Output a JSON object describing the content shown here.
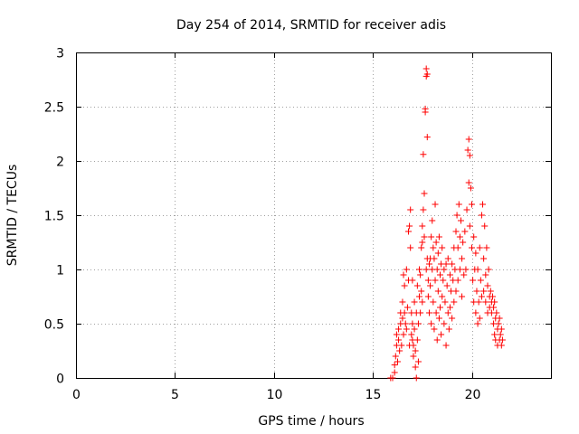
{
  "chart_data": {
    "type": "scatter",
    "title": "Day 254 of 2014, SRMTID for receiver adis",
    "xlabel": "GPS time / hours",
    "ylabel": "SRMTID / TECUs",
    "xlim": [
      0,
      24
    ],
    "ylim": [
      0,
      3
    ],
    "xticks": [
      0,
      5,
      10,
      15,
      20
    ],
    "xtick_labels": [
      "0",
      "5",
      "10",
      "15",
      "20"
    ],
    "yticks": [
      0,
      0.5,
      1,
      1.5,
      2,
      2.5,
      3
    ],
    "ytick_labels": [
      "0",
      "0.5",
      "1",
      "1.5",
      "2",
      "2.5",
      "3"
    ],
    "grid": true,
    "marker": "plus",
    "series": [
      {
        "name": "SRMTID",
        "color": "#ff0000",
        "points": [
          [
            15.9,
            0.0
          ],
          [
            16.0,
            0.0
          ],
          [
            16.1,
            0.05
          ],
          [
            16.1,
            0.12
          ],
          [
            16.15,
            0.2
          ],
          [
            16.2,
            0.3
          ],
          [
            16.2,
            0.4
          ],
          [
            16.25,
            0.15
          ],
          [
            16.3,
            0.35
          ],
          [
            16.3,
            0.45
          ],
          [
            16.35,
            0.25
          ],
          [
            16.4,
            0.5
          ],
          [
            16.4,
            0.6
          ],
          [
            16.45,
            0.3
          ],
          [
            16.5,
            0.55
          ],
          [
            16.5,
            0.7
          ],
          [
            16.55,
            0.95
          ],
          [
            16.55,
            0.4
          ],
          [
            16.6,
            0.6
          ],
          [
            16.6,
            0.85
          ],
          [
            16.65,
            0.5
          ],
          [
            16.7,
            0.45
          ],
          [
            16.7,
            1.0
          ],
          [
            16.75,
            0.65
          ],
          [
            16.8,
            1.35
          ],
          [
            16.8,
            0.9
          ],
          [
            16.85,
            1.4
          ],
          [
            16.85,
            0.3
          ],
          [
            16.9,
            1.55
          ],
          [
            16.9,
            1.2
          ],
          [
            16.95,
            0.4
          ],
          [
            16.95,
            0.6
          ],
          [
            17.0,
            0.35
          ],
          [
            17.0,
            0.5
          ],
          [
            17.0,
            0.9
          ],
          [
            17.05,
            0.3
          ],
          [
            17.05,
            0.2
          ],
          [
            17.1,
            0.45
          ],
          [
            17.1,
            0.7
          ],
          [
            17.15,
            0.25
          ],
          [
            17.15,
            0.1
          ],
          [
            17.2,
            0.0
          ],
          [
            17.2,
            0.6
          ],
          [
            17.25,
            0.35
          ],
          [
            17.25,
            0.85
          ],
          [
            17.3,
            0.5
          ],
          [
            17.3,
            0.15
          ],
          [
            17.35,
            0.75
          ],
          [
            17.35,
            1.0
          ],
          [
            17.4,
            0.95
          ],
          [
            17.4,
            0.6
          ],
          [
            17.45,
            1.2
          ],
          [
            17.45,
            0.8
          ],
          [
            17.5,
            1.25
          ],
          [
            17.5,
            1.4
          ],
          [
            17.5,
            0.7
          ],
          [
            17.55,
            1.55
          ],
          [
            17.55,
            2.06
          ],
          [
            17.6,
            1.7
          ],
          [
            17.6,
            1.3
          ],
          [
            17.65,
            2.45
          ],
          [
            17.65,
            2.48
          ],
          [
            17.7,
            2.78
          ],
          [
            17.7,
            2.85
          ],
          [
            17.7,
            1.0
          ],
          [
            17.75,
            2.8
          ],
          [
            17.75,
            2.22
          ],
          [
            17.75,
            1.1
          ],
          [
            17.8,
            0.9
          ],
          [
            17.8,
            0.75
          ],
          [
            17.85,
            1.05
          ],
          [
            17.85,
            0.6
          ],
          [
            17.9,
            1.1
          ],
          [
            17.9,
            0.85
          ],
          [
            17.95,
            1.3
          ],
          [
            17.95,
            0.5
          ],
          [
            18.0,
            1.45
          ],
          [
            18.0,
            1.0
          ],
          [
            18.05,
            1.2
          ],
          [
            18.05,
            0.7
          ],
          [
            18.1,
            1.1
          ],
          [
            18.1,
            0.45
          ],
          [
            18.15,
            1.6
          ],
          [
            18.15,
            0.9
          ],
          [
            18.2,
            1.25
          ],
          [
            18.2,
            0.6
          ],
          [
            18.25,
            1.0
          ],
          [
            18.25,
            0.35
          ],
          [
            18.3,
            0.8
          ],
          [
            18.3,
            1.15
          ],
          [
            18.35,
            0.55
          ],
          [
            18.35,
            1.3
          ],
          [
            18.4,
            0.95
          ],
          [
            18.4,
            0.65
          ],
          [
            18.45,
            1.05
          ],
          [
            18.45,
            0.4
          ],
          [
            18.5,
            0.75
          ],
          [
            18.5,
            1.2
          ],
          [
            18.55,
            0.9
          ],
          [
            18.6,
            0.5
          ],
          [
            18.6,
            1.0
          ],
          [
            18.65,
            0.7
          ],
          [
            18.7,
            1.05
          ],
          [
            18.7,
            0.3
          ],
          [
            18.75,
            0.85
          ],
          [
            18.8,
            0.6
          ],
          [
            18.8,
            1.1
          ],
          [
            18.85,
            0.45
          ],
          [
            18.9,
            0.95
          ],
          [
            18.9,
            0.65
          ],
          [
            18.95,
            0.8
          ],
          [
            19.0,
            1.05
          ],
          [
            19.0,
            0.55
          ],
          [
            19.05,
            0.9
          ],
          [
            19.1,
            1.2
          ],
          [
            19.1,
            0.7
          ],
          [
            19.15,
            1.0
          ],
          [
            19.2,
            1.35
          ],
          [
            19.2,
            0.8
          ],
          [
            19.25,
            1.5
          ],
          [
            19.3,
            1.2
          ],
          [
            19.3,
            0.9
          ],
          [
            19.35,
            1.6
          ],
          [
            19.4,
            1.3
          ],
          [
            19.4,
            1.0
          ],
          [
            19.45,
            1.45
          ],
          [
            19.5,
            1.1
          ],
          [
            19.5,
            0.75
          ],
          [
            19.55,
            1.25
          ],
          [
            19.6,
            0.95
          ],
          [
            19.65,
            1.35
          ],
          [
            19.7,
            1.0
          ],
          [
            19.75,
            1.55
          ],
          [
            19.8,
            2.1
          ],
          [
            19.85,
            2.2
          ],
          [
            19.85,
            1.8
          ],
          [
            19.9,
            2.05
          ],
          [
            19.9,
            1.4
          ],
          [
            19.95,
            1.75
          ],
          [
            20.0,
            1.6
          ],
          [
            20.0,
            1.2
          ],
          [
            20.05,
            0.9
          ],
          [
            20.1,
            1.3
          ],
          [
            20.1,
            0.7
          ],
          [
            20.15,
            1.0
          ],
          [
            20.2,
            0.6
          ],
          [
            20.2,
            1.15
          ],
          [
            20.25,
            0.8
          ],
          [
            20.3,
            0.5
          ],
          [
            20.3,
            1.0
          ],
          [
            20.35,
            0.7
          ],
          [
            20.4,
            1.2
          ],
          [
            20.4,
            0.55
          ],
          [
            20.45,
            0.9
          ],
          [
            20.5,
            1.5
          ],
          [
            20.5,
            0.75
          ],
          [
            20.55,
            1.6
          ],
          [
            20.6,
            1.1
          ],
          [
            20.6,
            0.8
          ],
          [
            20.65,
            1.4
          ],
          [
            20.7,
            0.95
          ],
          [
            20.7,
            0.7
          ],
          [
            20.75,
            1.2
          ],
          [
            20.8,
            0.85
          ],
          [
            20.8,
            0.6
          ],
          [
            20.85,
            1.0
          ],
          [
            20.9,
            0.75
          ],
          [
            20.9,
            0.65
          ],
          [
            20.95,
            0.8
          ],
          [
            21.0,
            0.7
          ],
          [
            21.0,
            0.6
          ],
          [
            21.05,
            0.75
          ],
          [
            21.1,
            0.5
          ],
          [
            21.1,
            0.65
          ],
          [
            21.15,
            0.4
          ],
          [
            21.15,
            0.7
          ],
          [
            21.2,
            0.55
          ],
          [
            21.2,
            0.35
          ],
          [
            21.25,
            0.6
          ],
          [
            21.3,
            0.45
          ],
          [
            21.3,
            0.3
          ],
          [
            21.35,
            0.5
          ],
          [
            21.4,
            0.35
          ],
          [
            21.4,
            0.55
          ],
          [
            21.45,
            0.4
          ],
          [
            21.5,
            0.3
          ],
          [
            21.5,
            0.45
          ],
          [
            21.55,
            0.35
          ]
        ]
      }
    ]
  }
}
